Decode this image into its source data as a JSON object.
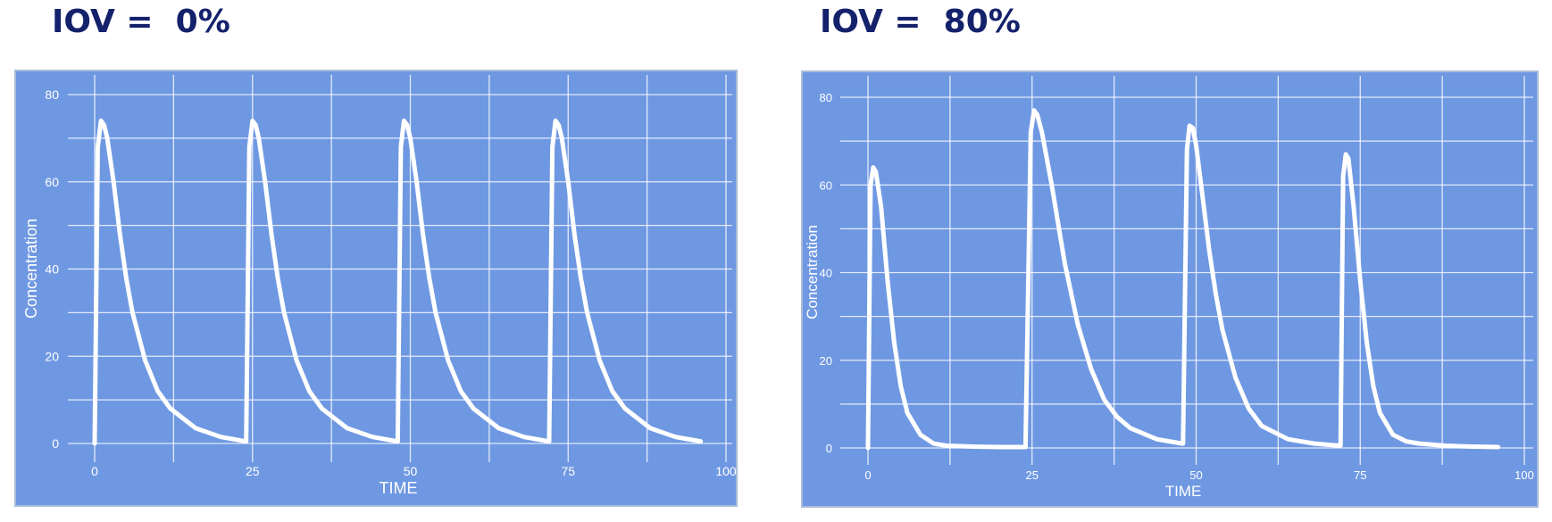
{
  "chart_data": [
    {
      "type": "line",
      "title": "IOV =  0%",
      "xlabel": "TIME",
      "ylabel": "Concentration",
      "xlim": [
        0,
        100
      ],
      "ylim": [
        0,
        80
      ],
      "x_ticks": [
        0,
        25,
        50,
        75,
        100
      ],
      "y_ticks": [
        0,
        20,
        40,
        60,
        80
      ],
      "x_tick_labels": [
        "0",
        "25",
        "50",
        "75",
        "100"
      ],
      "y_tick_labels": [
        "0",
        "20",
        "40",
        "60",
        "80"
      ],
      "grid": true,
      "line_color": "#ffffff",
      "background_color": "#6f98e2",
      "series": [
        {
          "x": [
            0,
            0.5,
            1,
            1.5,
            2,
            3,
            4,
            5,
            6,
            8,
            10,
            12,
            16,
            20,
            23.9,
            24,
            24.5,
            25,
            25.5,
            26,
            27,
            28,
            29,
            30,
            32,
            34,
            36,
            40,
            44,
            47.9,
            48,
            48.5,
            49,
            49.5,
            50,
            51,
            52,
            53,
            54,
            56,
            58,
            60,
            64,
            68,
            71.9,
            72,
            72.5,
            73,
            73.5,
            74,
            75,
            76,
            77,
            78,
            80,
            82,
            84,
            88,
            92,
            96
          ],
          "y": [
            0,
            68,
            74,
            73,
            70,
            60,
            48,
            38,
            30,
            19,
            12,
            8,
            3.5,
            1.5,
            0.5,
            0.5,
            68,
            74,
            73,
            70,
            60,
            48,
            38,
            30,
            19,
            12,
            8,
            3.5,
            1.5,
            0.5,
            0.5,
            68,
            74,
            73,
            70,
            60,
            48,
            38,
            30,
            19,
            12,
            8,
            3.5,
            1.5,
            0.5,
            0.5,
            68,
            74,
            73,
            70,
            60,
            48,
            38,
            30,
            19,
            12,
            8,
            3.5,
            1.5,
            0.5
          ]
        }
      ]
    },
    {
      "type": "line",
      "title": "IOV =  80%",
      "xlabel": "TIME",
      "ylabel": "Concentration",
      "xlim": [
        0,
        100
      ],
      "ylim": [
        0,
        80
      ],
      "x_ticks": [
        0,
        25,
        50,
        75,
        100
      ],
      "y_ticks": [
        0,
        20,
        40,
        60,
        80
      ],
      "x_tick_labels": [
        "0",
        "25",
        "50",
        "75",
        "100"
      ],
      "y_tick_labels": [
        "0",
        "20",
        "40",
        "60",
        "80"
      ],
      "grid": true,
      "line_color": "#ffffff",
      "background_color": "#6f98e2",
      "series": [
        {
          "x": [
            0,
            0.4,
            0.8,
            1.2,
            2,
            3,
            4,
            5,
            6,
            8,
            10,
            12,
            16,
            20,
            23.9,
            24,
            24.8,
            25.3,
            25.8,
            26.5,
            28,
            29,
            30,
            32,
            34,
            36,
            38,
            40,
            44,
            47.9,
            48,
            48.6,
            49,
            49.5,
            50,
            51,
            52,
            53,
            54,
            56,
            58,
            60,
            64,
            68,
            71.9,
            72,
            72.4,
            72.8,
            73.2,
            74,
            75,
            76,
            77,
            78,
            80,
            82,
            84,
            88,
            92,
            96
          ],
          "y": [
            0,
            60,
            64,
            63,
            55,
            38,
            24,
            14,
            8,
            3,
            1,
            0.5,
            0.3,
            0.2,
            0.2,
            0.2,
            72,
            77,
            76,
            72,
            60,
            51,
            42,
            28,
            18,
            11,
            7,
            4.5,
            2,
            1,
            1,
            68,
            73.5,
            73,
            69,
            57,
            45,
            35,
            27,
            16,
            9,
            5,
            2,
            1,
            0.5,
            0.5,
            62,
            67,
            66,
            55,
            38,
            24,
            14,
            8,
            3,
            1.5,
            1,
            0.5,
            0.3,
            0.2
          ]
        }
      ]
    }
  ]
}
